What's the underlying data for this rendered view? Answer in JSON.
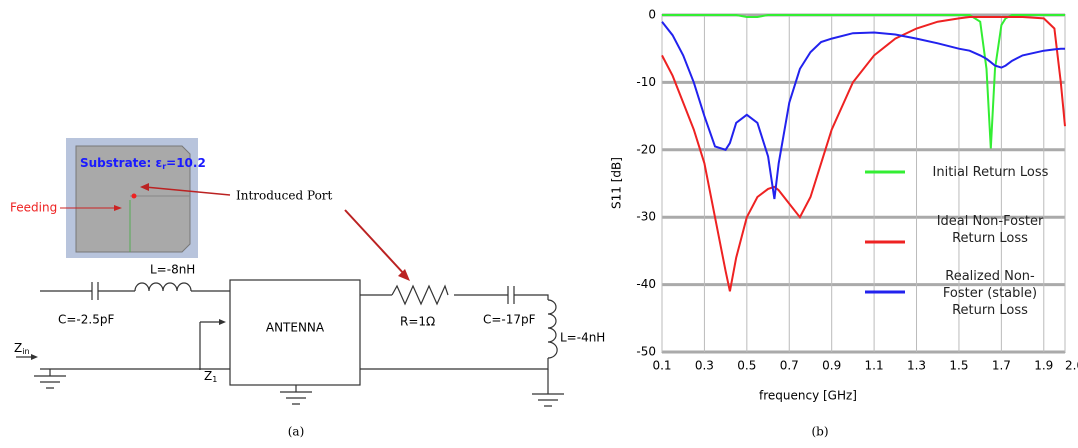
{
  "diagram": {
    "substrate": [
      "Substrate: ε",
      "r",
      "=10.2"
    ],
    "feeding": "Feeding",
    "introduced_port": "Introduced Port",
    "l1": "L=-8nH",
    "c1": "C=-2.5pF",
    "antenna": "ANTENNA",
    "r": "R=1Ω",
    "c2": "C=-17pF",
    "l2": "L=-4nH",
    "z_in": [
      "Z",
      "in"
    ],
    "z_1": [
      "Z",
      "1"
    ],
    "caption": "(a)"
  },
  "chart_data": {
    "type": "line",
    "caption": "(b)",
    "xlabel": "frequency [GHz]",
    "ylabel": "S11 [dB]",
    "x": [
      0.1,
      0.15,
      0.2,
      0.25,
      0.3,
      0.35,
      0.4,
      0.42,
      0.45,
      0.5,
      0.55,
      0.6,
      0.63,
      0.65,
      0.7,
      0.75,
      0.8,
      0.85,
      0.9,
      1.0,
      1.1,
      1.2,
      1.3,
      1.4,
      1.5,
      1.55,
      1.6,
      1.63,
      1.65,
      1.67,
      1.7,
      1.72,
      1.75,
      1.8,
      1.9,
      1.95,
      1.98,
      2.0
    ],
    "series": [
      {
        "name": "Initial Return Loss",
        "color": "#33ee33",
        "values": [
          0,
          0,
          0,
          0,
          0,
          0,
          0,
          0,
          0,
          -0.3,
          -0.3,
          0,
          0,
          0,
          0,
          0,
          0,
          0,
          0,
          0,
          0,
          0,
          0,
          0,
          0,
          0,
          -1,
          -8,
          -19.8,
          -8,
          -1.5,
          -0.5,
          0,
          0,
          0,
          0,
          0,
          0
        ]
      },
      {
        "name": "Ideal Non-Foster Return Loss",
        "color": "#ee2222",
        "values": [
          -6,
          -9,
          -13,
          -17,
          -22,
          -30,
          -38,
          -41,
          -36,
          -30,
          -27,
          -25.8,
          -25.5,
          -26,
          -28,
          -30,
          -27,
          -22,
          -17,
          -10,
          -6,
          -3.5,
          -2,
          -1,
          -0.5,
          -0.3,
          -0.3,
          -0.3,
          -0.3,
          -0.3,
          -0.3,
          -0.3,
          -0.3,
          -0.3,
          -0.5,
          -2,
          -10,
          -16.5
        ]
      },
      {
        "name": "Realized Non-Foster (stable) Return Loss",
        "color": "#2222ee",
        "values": [
          -1,
          -3,
          -6,
          -10,
          -15,
          -19.5,
          -20,
          -19,
          -16,
          -14.8,
          -16,
          -21,
          -27.3,
          -22,
          -13,
          -8,
          -5.5,
          -4,
          -3.5,
          -2.7,
          -2.6,
          -2.9,
          -3.5,
          -4.2,
          -5,
          -5.3,
          -6,
          -6.5,
          -7,
          -7.5,
          -7.8,
          -7.5,
          -6.8,
          -6,
          -5.3,
          -5.1,
          -5,
          -5
        ]
      }
    ],
    "xlim": [
      0.1,
      2
    ],
    "xticks": [
      0.1,
      0.3,
      0.5,
      0.7,
      0.9,
      1.1,
      1.3,
      1.5,
      1.7,
      1.9,
      {
        "value": 2,
        "label": "2.0"
      }
    ],
    "ylim": [
      -50,
      0
    ],
    "yticks": [
      0,
      -10,
      -20,
      -30,
      -40,
      -50
    ],
    "grid": true
  }
}
